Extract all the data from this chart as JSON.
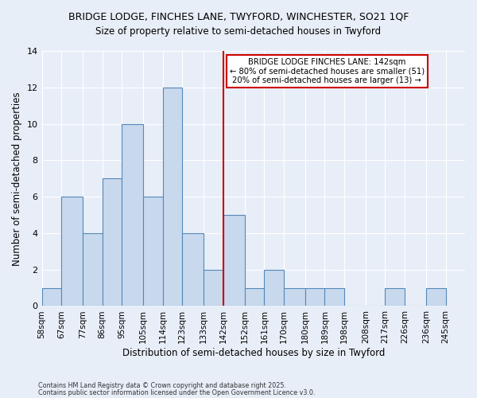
{
  "title_line1": "BRIDGE LODGE, FINCHES LANE, TWYFORD, WINCHESTER, SO21 1QF",
  "title_line2": "Size of property relative to semi-detached houses in Twyford",
  "xlabel": "Distribution of semi-detached houses by size in Twyford",
  "ylabel": "Number of semi-detached properties",
  "bin_labels": [
    "58sqm",
    "67sqm",
    "77sqm",
    "86sqm",
    "95sqm",
    "105sqm",
    "114sqm",
    "123sqm",
    "133sqm",
    "142sqm",
    "152sqm",
    "161sqm",
    "170sqm",
    "180sqm",
    "189sqm",
    "198sqm",
    "208sqm",
    "217sqm",
    "226sqm",
    "236sqm",
    "245sqm"
  ],
  "bin_edges": [
    58,
    67,
    77,
    86,
    95,
    105,
    114,
    123,
    133,
    142,
    152,
    161,
    170,
    180,
    189,
    198,
    208,
    217,
    226,
    236,
    245
  ],
  "counts": [
    1,
    6,
    4,
    7,
    10,
    6,
    12,
    4,
    2,
    5,
    1,
    2,
    1,
    1,
    1,
    0,
    0,
    1,
    0,
    1
  ],
  "property_line_x": 142,
  "annotation_title": "BRIDGE LODGE FINCHES LANE: 142sqm",
  "annotation_line2": "← 80% of semi-detached houses are smaller (51)",
  "annotation_line3": "20% of semi-detached houses are larger (13) →",
  "bar_color": "#c8d9ed",
  "bar_edgecolor": "#5588bb",
  "vline_color": "#cc0000",
  "annotation_box_edgecolor": "#cc0000",
  "background_color": "#e8eef8",
  "grid_color": "#ffffff",
  "ylim": [
    0,
    14
  ],
  "yticks": [
    0,
    2,
    4,
    6,
    8,
    10,
    12,
    14
  ],
  "footer1": "Contains HM Land Registry data © Crown copyright and database right 2025.",
  "footer2": "Contains public sector information licensed under the Open Government Licence v3.0."
}
